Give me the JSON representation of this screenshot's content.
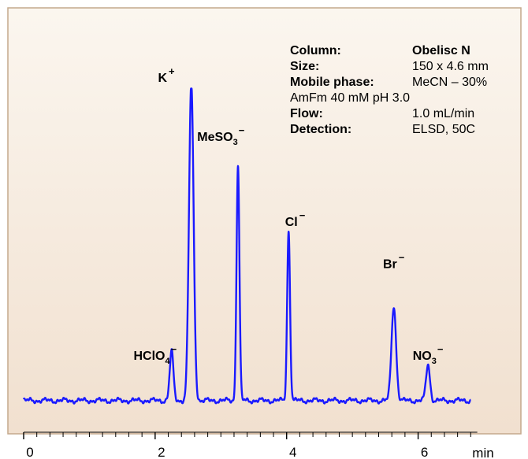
{
  "chart_data": {
    "type": "line",
    "xlabel": "min",
    "xlim": [
      0,
      7
    ],
    "ylim": [
      0,
      100
    ],
    "grid": false,
    "line_color": "#1a1aff",
    "frame_color": "#c4a98c",
    "background_top": "#fbf6ef",
    "background_bottom": "#f1e0cf",
    "x_ticks": [
      "0",
      "2",
      "4",
      "6"
    ],
    "baseline": 1.5,
    "series": [
      {
        "peaks": [
          {
            "x": 2.25,
            "height": 15,
            "width": 0.028
          },
          {
            "x": 2.55,
            "height": 97,
            "width": 0.035,
            "flat_top": true
          },
          {
            "x": 3.26,
            "height": 72,
            "width": 0.022
          },
          {
            "x": 4.03,
            "height": 52,
            "width": 0.022
          },
          {
            "x": 5.63,
            "height": 29,
            "width": 0.035
          },
          {
            "x": 6.15,
            "height": 11,
            "width": 0.03
          }
        ]
      }
    ],
    "peak_labels": [
      {
        "x": 2.0,
        "y": 14,
        "main": "HClO",
        "sub": "4",
        "sup": "−"
      },
      {
        "x": 2.17,
        "y": 99,
        "main": "K",
        "sub": "",
        "sup": "+"
      },
      {
        "x": 3.0,
        "y": 81,
        "main": "MeSO",
        "sub": "3",
        "sup": "−"
      },
      {
        "x": 4.13,
        "y": 55,
        "main": "Cl",
        "sub": "",
        "sup": "−"
      },
      {
        "x": 5.63,
        "y": 42,
        "main": "Br",
        "sub": "",
        "sup": "−"
      },
      {
        "x": 6.15,
        "y": 14,
        "main": "NO",
        "sub": "3",
        "sup": "−"
      }
    ]
  },
  "info": {
    "rows": [
      {
        "label": "Column:",
        "value": "Obelisc N",
        "value_bold": true
      },
      {
        "label": "Size:",
        "value": "150 x 4.6 mm",
        "value_bold": false
      },
      {
        "label": "Mobile phase:",
        "value": "MeCN – 30%",
        "value_bold": false
      },
      {
        "label": "",
        "value": "AmFm  40 mM pH 3.0",
        "value_bold": false
      },
      {
        "label": "Flow:",
        "value": "1.0 mL/min",
        "value_bold": false
      },
      {
        "label": "Detection:",
        "value": "ELSD, 50C",
        "value_bold": false
      }
    ]
  }
}
